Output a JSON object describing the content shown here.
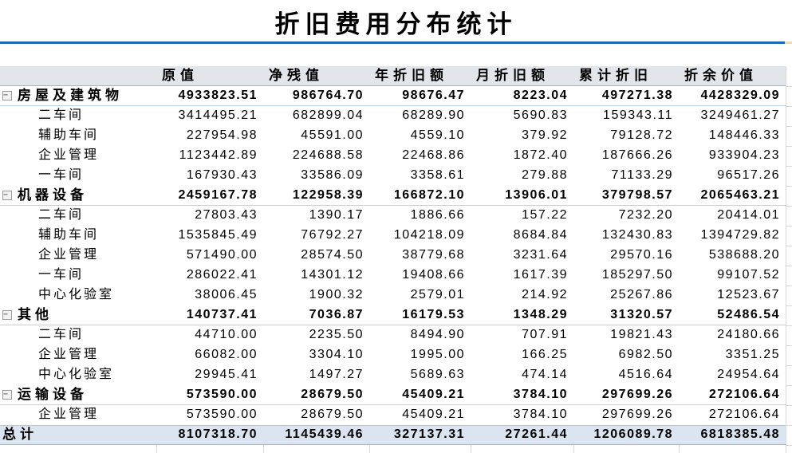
{
  "title": "折旧费用分布统计",
  "icons": {
    "collapse_glyph": "−"
  },
  "colors": {
    "title_rule_blue": "#1c6bb2",
    "title_rule_end_tan": "#e9d9bd",
    "header_bg": "#e2e5ea",
    "total_row_bg": "#dbe5f1",
    "strong_border": "#9fb4cc",
    "group_border": "#bcd2e4",
    "gridline": "#d8d8d8"
  },
  "chart_data": {
    "type": "table",
    "title": "折旧费用分布统计",
    "columns": [
      "原值",
      "净残值",
      "年折旧额",
      "月折旧额",
      "累计折旧",
      "折余价值"
    ],
    "rows": [
      {
        "type": "group",
        "label": "房屋及建筑物",
        "values": [
          "4933823.51",
          "986764.70",
          "98676.47",
          "8223.04",
          "497271.38",
          "4428329.09"
        ]
      },
      {
        "type": "detail",
        "label": "二车间",
        "values": [
          "3414495.21",
          "682899.04",
          "68289.90",
          "5690.83",
          "159343.11",
          "3249461.27"
        ]
      },
      {
        "type": "detail",
        "label": "辅助车间",
        "values": [
          "227954.98",
          "45591.00",
          "4559.10",
          "379.92",
          "79128.72",
          "148446.33"
        ]
      },
      {
        "type": "detail",
        "label": "企业管理",
        "values": [
          "1123442.89",
          "224688.58",
          "22468.86",
          "1872.40",
          "187666.26",
          "933904.23"
        ]
      },
      {
        "type": "detail",
        "label": "一车间",
        "values": [
          "167930.43",
          "33586.09",
          "3358.61",
          "279.88",
          "71133.29",
          "96517.26"
        ]
      },
      {
        "type": "group",
        "label": "机器设备",
        "values": [
          "2459167.78",
          "122958.39",
          "166872.10",
          "13906.01",
          "379798.57",
          "2065463.21"
        ]
      },
      {
        "type": "detail",
        "label": "二车间",
        "values": [
          "27803.43",
          "1390.17",
          "1886.66",
          "157.22",
          "7232.20",
          "20414.01"
        ]
      },
      {
        "type": "detail",
        "label": "辅助车间",
        "values": [
          "1535845.49",
          "76792.27",
          "104218.09",
          "8684.84",
          "132430.83",
          "1394729.82"
        ]
      },
      {
        "type": "detail",
        "label": "企业管理",
        "values": [
          "571490.00",
          "28574.50",
          "38779.68",
          "3231.64",
          "29570.16",
          "538688.20"
        ]
      },
      {
        "type": "detail",
        "label": "一车间",
        "values": [
          "286022.41",
          "14301.12",
          "19408.66",
          "1617.39",
          "185297.50",
          "99107.52"
        ]
      },
      {
        "type": "detail",
        "label": "中心化验室",
        "values": [
          "38006.45",
          "1900.32",
          "2579.01",
          "214.92",
          "25267.86",
          "12523.67"
        ]
      },
      {
        "type": "group",
        "label": "其他",
        "values": [
          "140737.41",
          "7036.87",
          "16179.53",
          "1348.29",
          "31320.57",
          "52486.54"
        ]
      },
      {
        "type": "detail",
        "label": "二车间",
        "values": [
          "44710.00",
          "2235.50",
          "8494.90",
          "707.91",
          "19821.43",
          "24180.66"
        ]
      },
      {
        "type": "detail",
        "label": "企业管理",
        "values": [
          "66082.00",
          "3304.10",
          "1995.00",
          "166.25",
          "6982.50",
          "3351.25"
        ]
      },
      {
        "type": "detail",
        "label": "中心化验室",
        "values": [
          "29945.41",
          "1497.27",
          "5689.63",
          "474.14",
          "4516.64",
          "24954.64"
        ]
      },
      {
        "type": "group",
        "label": "运输设备",
        "values": [
          "573590.00",
          "28679.50",
          "45409.21",
          "3784.10",
          "297699.26",
          "272106.64"
        ]
      },
      {
        "type": "detail",
        "label": "企业管理",
        "values": [
          "573590.00",
          "28679.50",
          "45409.21",
          "3784.10",
          "297699.26",
          "272106.64"
        ]
      },
      {
        "type": "total",
        "label": "总计",
        "values": [
          "8107318.70",
          "1145439.46",
          "327137.31",
          "27261.44",
          "1206089.78",
          "6818385.48"
        ]
      }
    ]
  }
}
